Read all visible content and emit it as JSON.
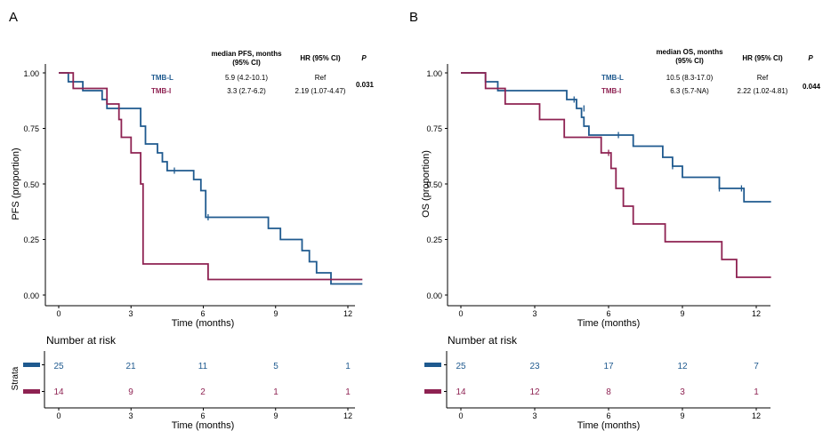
{
  "panels": [
    {
      "label": "A",
      "ylabel": "PFS (proportion)",
      "xlabel": "Time (months)",
      "yticks": [
        0.0,
        0.25,
        0.5,
        0.75,
        1.0
      ],
      "ytick_labels": [
        "0.00",
        "0.25",
        "0.50",
        "0.75",
        "1.00"
      ],
      "xticks": [
        0,
        3,
        6,
        9,
        12
      ],
      "xtick_labels": [
        "0",
        "3",
        "6",
        "9",
        "12"
      ],
      "table_header": {
        "median": "median PFS, months\n(95% CI)",
        "hr": "HR  (95% CI)",
        "p": "P"
      },
      "rows": [
        {
          "name": "TMB-L",
          "median": "5.9 (4.2-10.1)",
          "hr": "Ref"
        },
        {
          "name": "TMB-I",
          "median": "3.3 (2.7-6.2)",
          "hr": "2.19 (1.07-4.47)"
        }
      ],
      "p_value": "0.031",
      "risk_title": "Number at risk",
      "risk_ylabel": "Strata",
      "risk_xlabel": "Time (months)",
      "risk": [
        [
          25,
          21,
          11,
          5,
          1
        ],
        [
          14,
          9,
          2,
          1,
          1
        ]
      ]
    },
    {
      "label": "B",
      "ylabel": "OS (proportion)",
      "xlabel": "Time (months)",
      "yticks": [
        0.0,
        0.25,
        0.5,
        0.75,
        1.0
      ],
      "ytick_labels": [
        "0.00",
        "0.25",
        "0.50",
        "0.75",
        "1.00"
      ],
      "xticks": [
        0,
        3,
        6,
        9,
        12
      ],
      "xtick_labels": [
        "0",
        "3",
        "6",
        "9",
        "12"
      ],
      "table_header": {
        "median": "median OS, months\n(95% CI)",
        "hr": "HR  (95% CI)",
        "p": "P"
      },
      "rows": [
        {
          "name": "TMB-L",
          "median": "10.5 (8.3-17.0)",
          "hr": "Ref"
        },
        {
          "name": "TMB-I",
          "median": "6.3 (5.7-NA)",
          "hr": "2.22 (1.02-4.81)"
        }
      ],
      "p_value": "0.044",
      "risk_title": "Number at risk",
      "risk_ylabel": "",
      "risk_xlabel": "Time (months)",
      "risk": [
        [
          25,
          23,
          17,
          12,
          7
        ],
        [
          14,
          12,
          8,
          3,
          1
        ]
      ]
    }
  ],
  "colors": {
    "TMB-L": "#1f5a8f",
    "TMB-I": "#8e2252",
    "axis": "#000000"
  },
  "chart_data": [
    {
      "type": "line",
      "step": true,
      "title": "A",
      "xlabel": "Time (months)",
      "ylabel": "PFS (proportion)",
      "xlim": [
        -0.5,
        12.6
      ],
      "ylim": [
        -0.05,
        1.05
      ],
      "series": [
        {
          "name": "TMB-L",
          "x": [
            0,
            0.4,
            1.0,
            1.8,
            2.0,
            3.3,
            3.4,
            3.6,
            4.1,
            4.3,
            4.5,
            5.0,
            5.6,
            5.9,
            6.1,
            8.1,
            8.7,
            9.2,
            10.1,
            10.4,
            10.7,
            11.0,
            11.3,
            11.5,
            12.6
          ],
          "y": [
            1.0,
            0.96,
            0.92,
            0.88,
            0.84,
            0.84,
            0.76,
            0.68,
            0.64,
            0.6,
            0.56,
            0.56,
            0.52,
            0.47,
            0.35,
            0.35,
            0.3,
            0.25,
            0.2,
            0.15,
            0.1,
            0.1,
            0.05,
            0.05,
            0.05
          ],
          "censor_x": [
            4.8,
            6.2
          ],
          "censor_y": [
            0.56,
            0.35
          ]
        },
        {
          "name": "TMB-I",
          "x": [
            0,
            0.6,
            1.2,
            2.0,
            2.4,
            2.5,
            2.6,
            3.0,
            3.2,
            3.4,
            3.5,
            6.0,
            6.2,
            12.6
          ],
          "y": [
            1.0,
            0.93,
            0.93,
            0.86,
            0.86,
            0.79,
            0.71,
            0.64,
            0.64,
            0.5,
            0.14,
            0.14,
            0.07,
            0.07
          ],
          "censor_x": [],
          "censor_y": []
        }
      ]
    },
    {
      "type": "line",
      "step": true,
      "title": "B",
      "xlabel": "Time (months)",
      "ylabel": "OS (proportion)",
      "xlim": [
        -0.5,
        12.6
      ],
      "ylim": [
        -0.05,
        1.05
      ],
      "series": [
        {
          "name": "TMB-L",
          "x": [
            0,
            1.0,
            1.5,
            2.5,
            4.3,
            4.7,
            4.9,
            5.0,
            5.2,
            5.3,
            5.6,
            7.0,
            8.2,
            8.6,
            9.0,
            10.5,
            11.5,
            12.6
          ],
          "y": [
            1.0,
            0.96,
            0.92,
            0.92,
            0.88,
            0.84,
            0.8,
            0.76,
            0.72,
            0.72,
            0.72,
            0.67,
            0.62,
            0.58,
            0.53,
            0.48,
            0.42,
            0.42
          ],
          "censor_x": [
            4.6,
            5.0,
            6.4,
            8.6,
            10.5,
            11.4
          ],
          "censor_y": [
            0.88,
            0.84,
            0.72,
            0.58,
            0.48,
            0.48
          ]
        },
        {
          "name": "TMB-I",
          "x": [
            0,
            1.0,
            1.8,
            3.2,
            4.2,
            5.7,
            6.1,
            6.3,
            6.6,
            7.0,
            8.3,
            10.6,
            11.2,
            12.6
          ],
          "y": [
            1.0,
            0.93,
            0.86,
            0.79,
            0.71,
            0.64,
            0.57,
            0.48,
            0.4,
            0.32,
            0.24,
            0.16,
            0.08,
            0.08
          ],
          "censor_x": [
            6.0
          ],
          "censor_y": [
            0.64
          ]
        }
      ]
    }
  ]
}
